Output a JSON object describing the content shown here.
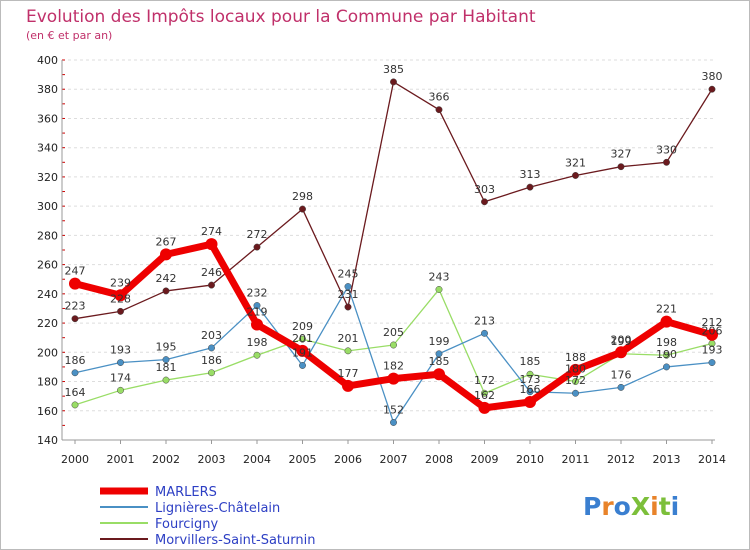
{
  "chart_data": {
    "type": "line",
    "title": "Evolution des Impôts locaux pour la Commune par Habitant",
    "subtitle": "(en € et par an)",
    "x": [
      "2000",
      "2001",
      "2002",
      "2003",
      "2004",
      "2005",
      "2006",
      "2007",
      "2008",
      "2009",
      "2010",
      "2011",
      "2012",
      "2013",
      "2014"
    ],
    "ylim": [
      140,
      400
    ],
    "yticks": [
      140,
      160,
      180,
      200,
      220,
      240,
      260,
      280,
      300,
      320,
      340,
      360,
      380,
      400
    ],
    "grid": "horizontal dashed",
    "legend_position": "bottom-left",
    "series": [
      {
        "name": "Morvillers-Saint-Saturnin",
        "color": "#6b1a1e",
        "values": [
          223,
          228,
          242,
          246,
          272,
          298,
          231,
          385,
          366,
          303,
          313,
          321,
          327,
          330,
          380
        ]
      },
      {
        "name": "Fourcigny",
        "color": "#99dd66",
        "values": [
          164,
          174,
          181,
          186,
          198,
          209,
          201,
          205,
          243,
          172,
          185,
          180,
          199,
          198,
          206
        ]
      },
      {
        "name": "Lignières-Châtelain",
        "color": "#4a90c4",
        "values": [
          186,
          193,
          195,
          203,
          232,
          191,
          245,
          152,
          199,
          213,
          173,
          172,
          176,
          190,
          193
        ]
      },
      {
        "name": "MARLERS",
        "color": "#ee0000",
        "values": [
          247,
          239,
          267,
          274,
          219,
          201,
          177,
          182,
          185,
          162,
          166,
          188,
          200,
          221,
          212
        ]
      }
    ]
  },
  "logo": {
    "text": "ProXiti"
  }
}
